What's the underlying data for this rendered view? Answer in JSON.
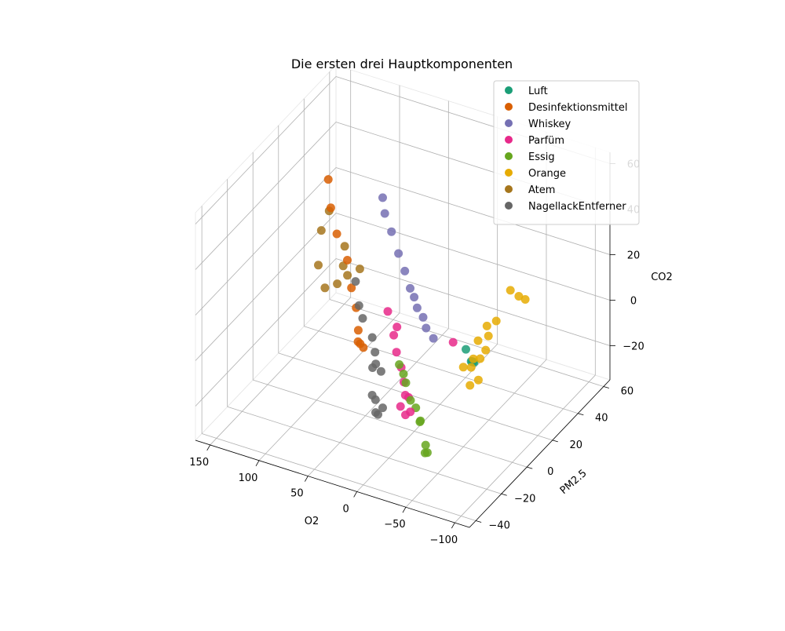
{
  "chart_data": {
    "type": "scatter",
    "title": "Die ersten drei Hauptkomponenten",
    "xlabel": "O2",
    "ylabel": "PM2.5",
    "zlabel": "CO2",
    "xticks": [
      "−100",
      "−50",
      "0",
      "50",
      "100",
      "150"
    ],
    "yticks": [
      "−40",
      "−20",
      "0",
      "20",
      "40",
      "60"
    ],
    "zticks": [
      "−20",
      "0",
      "20",
      "40",
      "60"
    ],
    "xlim": [
      -115,
      165
    ],
    "ylim": [
      -45,
      65
    ],
    "zlim": [
      -35,
      65
    ],
    "legend_position": "top-right",
    "grid": true,
    "series": [
      {
        "name": "Luft",
        "color": "#1b9e77",
        "points": [
          [
            -31,
            23,
            -14
          ],
          [
            -30,
            23,
            -14
          ],
          [
            -29,
            23,
            -14
          ],
          [
            -28,
            23,
            -14
          ],
          [
            -20,
            25,
            -11
          ]
        ]
      },
      {
        "name": "Desinfektionsmittel",
        "color": "#d95f02",
        "points": [
          [
            45,
            -8,
            2
          ],
          [
            43,
            -7,
            0
          ],
          [
            55,
            -2,
            -2
          ],
          [
            60,
            2,
            0
          ],
          [
            70,
            8,
            5
          ],
          [
            80,
            12,
            10
          ],
          [
            92,
            18,
            17
          ],
          [
            108,
            22,
            24
          ],
          [
            122,
            28,
            30
          ],
          [
            135,
            36,
            36
          ]
        ]
      },
      {
        "name": "Whiskey",
        "color": "#7570b3",
        "points": [
          [
            -22,
            -2,
            10
          ],
          [
            -12,
            0,
            12
          ],
          [
            -5,
            3,
            14
          ],
          [
            5,
            6,
            15
          ],
          [
            12,
            9,
            17
          ],
          [
            20,
            12,
            18
          ],
          [
            32,
            17,
            21
          ],
          [
            45,
            22,
            24
          ],
          [
            60,
            28,
            28
          ],
          [
            72,
            32,
            32
          ],
          [
            82,
            38,
            34
          ]
        ]
      },
      {
        "name": "Parfüm",
        "color": "#e7298a",
        "points": [
          [
            -3,
            28,
            -12
          ],
          [
            -35,
            -30,
            -4
          ],
          [
            -30,
            -30,
            -6
          ],
          [
            -25,
            -30,
            -3
          ],
          [
            -28,
            -26,
            -1
          ],
          [
            -22,
            -24,
            -2
          ],
          [
            -18,
            -22,
            2
          ],
          [
            -10,
            -18,
            5
          ],
          [
            0,
            -14,
            8
          ],
          [
            8,
            -10,
            12
          ],
          [
            10,
            -6,
            13
          ],
          [
            22,
            -4,
            17
          ]
        ]
      },
      {
        "name": "Essig",
        "color": "#66a61e",
        "points": [
          [
            -55,
            -32,
            -18
          ],
          [
            -50,
            -30,
            -20
          ],
          [
            -48,
            -28,
            -18
          ],
          [
            -50,
            -34,
            -4
          ],
          [
            -48,
            -32,
            -5
          ],
          [
            -38,
            -28,
            -3
          ],
          [
            -30,
            -26,
            -2
          ],
          [
            -20,
            -22,
            2
          ],
          [
            -15,
            -20,
            4
          ],
          [
            -8,
            -18,
            6
          ]
        ]
      },
      {
        "name": "Orange",
        "color": "#e6ab02",
        "points": [
          [
            -78,
            22,
            22
          ],
          [
            -72,
            20,
            25
          ],
          [
            -82,
            24,
            20
          ],
          [
            -55,
            22,
            8
          ],
          [
            -48,
            20,
            6
          ],
          [
            -60,
            12,
            8
          ],
          [
            -52,
            10,
            6
          ],
          [
            -65,
            6,
            6
          ],
          [
            -62,
            4,
            3
          ],
          [
            -55,
            4,
            2
          ],
          [
            -58,
            0,
            1
          ],
          [
            -50,
            0,
            0
          ],
          [
            -68,
            -2,
            -2
          ],
          [
            -62,
            -4,
            -4
          ]
        ]
      },
      {
        "name": "Atem",
        "color": "#a6761d",
        "points": [
          [
            130,
            45,
            2
          ],
          [
            125,
            40,
            -3
          ],
          [
            118,
            38,
            -5
          ],
          [
            108,
            40,
            -2
          ],
          [
            118,
            30,
            -4
          ],
          [
            128,
            28,
            -6
          ],
          [
            140,
            32,
            0
          ],
          [
            150,
            42,
            8
          ],
          [
            155,
            52,
            10
          ]
        ]
      },
      {
        "name": "NagellackEntferner",
        "color": "#666666",
        "points": [
          [
            -15,
            -40,
            -2
          ],
          [
            -10,
            -38,
            -3
          ],
          [
            -12,
            -34,
            -3
          ],
          [
            -2,
            -32,
            -2
          ],
          [
            4,
            -30,
            -2
          ],
          [
            14,
            -22,
            4
          ],
          [
            8,
            -20,
            2
          ],
          [
            16,
            -18,
            3
          ],
          [
            22,
            -14,
            5
          ],
          [
            30,
            -10,
            8
          ],
          [
            45,
            -6,
            12
          ],
          [
            54,
            -2,
            14
          ],
          [
            68,
            6,
            18
          ]
        ]
      }
    ]
  }
}
